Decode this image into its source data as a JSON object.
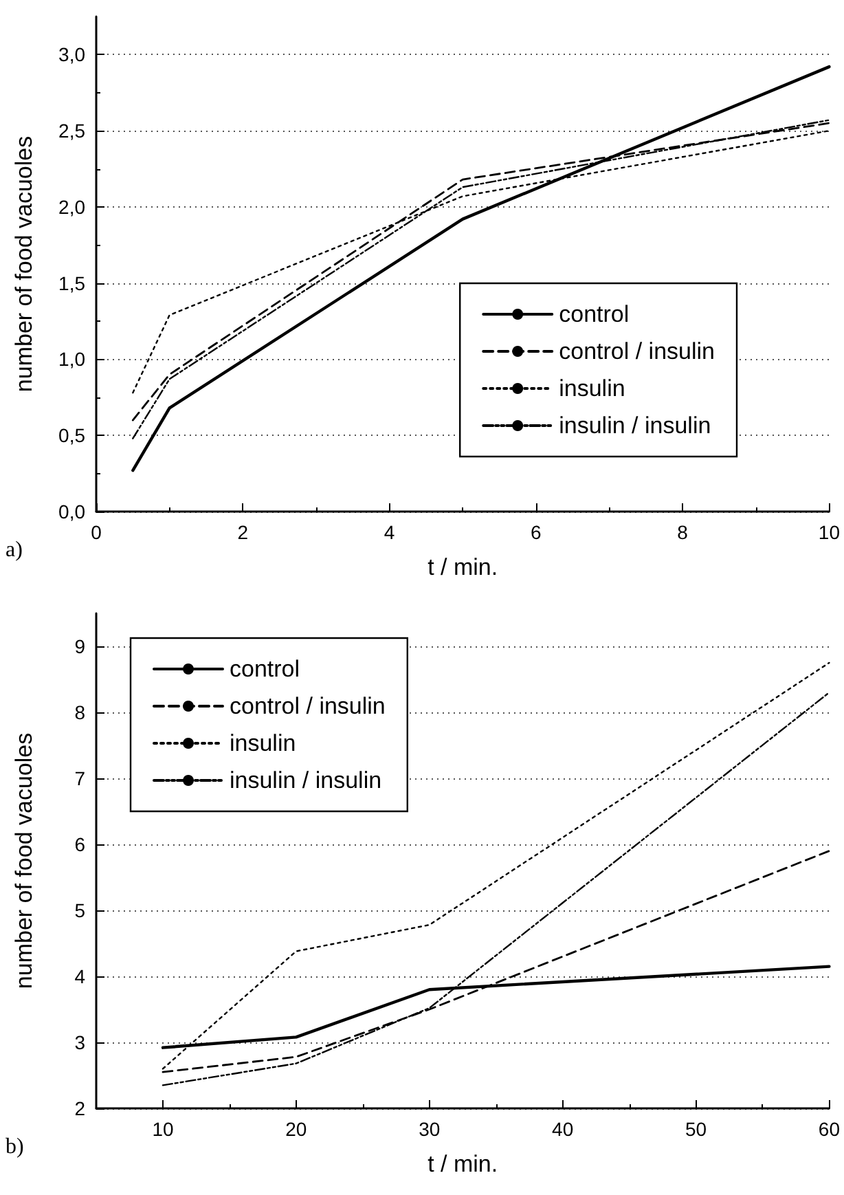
{
  "chart_data": [
    {
      "type": "line",
      "xlabel": "t / min.",
      "ylabel": "number of food vacuoles",
      "annotations": [
        "a)"
      ],
      "xlim": [
        0,
        10
      ],
      "xticks": [
        0,
        2,
        4,
        6,
        8,
        10
      ],
      "ylim": [
        0,
        3.25
      ],
      "yticks": [
        {
          "value": 0,
          "label": "0,0"
        },
        {
          "value": 0.5,
          "label": "0,5"
        },
        {
          "value": 1,
          "label": "1,0"
        },
        {
          "value": 1.5,
          "label": "1,5"
        },
        {
          "value": 2,
          "label": "2,0"
        },
        {
          "value": 2.5,
          "label": "2,5"
        },
        {
          "value": 3,
          "label": "3,0"
        }
      ],
      "grid": "y",
      "legend": "bottom right",
      "marker": "none",
      "x": [
        0.5,
        1,
        5,
        10
      ],
      "series": [
        {
          "name": "control",
          "color": "#000000",
          "line_style": "solid",
          "values": [
            0.27,
            0.68,
            1.92,
            2.92
          ]
        },
        {
          "name": "control / insulin",
          "color": "#000000",
          "line_style": "dashed",
          "values": [
            0.6,
            0.9,
            2.18,
            2.55
          ]
        },
        {
          "name": "insulin",
          "color": "#000000",
          "line_style": "dotted",
          "values": [
            0.78,
            1.29,
            2.07,
            2.5
          ]
        },
        {
          "name": "insulin / insulin",
          "color": "#000000",
          "line_style": "dashdot",
          "values": [
            0.48,
            0.87,
            2.13,
            2.57
          ]
        }
      ]
    },
    {
      "type": "line",
      "xlabel": "t / min.",
      "ylabel": "number of food vacuoles",
      "annotations": [
        "b)"
      ],
      "xlim": [
        5,
        60
      ],
      "xticks": [
        10,
        20,
        30,
        40,
        50,
        60
      ],
      "ylim": [
        2,
        9.5
      ],
      "yticks": [
        2,
        3,
        4,
        5,
        6,
        7,
        8,
        9
      ],
      "grid": "y",
      "legend": "top left",
      "marker": "none",
      "x": [
        10,
        20,
        30,
        60
      ],
      "series": [
        {
          "name": "control",
          "color": "#000000",
          "line_style": "solid",
          "values": [
            2.92,
            3.08,
            3.8,
            4.15
          ]
        },
        {
          "name": "control / insulin",
          "color": "#000000",
          "line_style": "dashed",
          "values": [
            2.55,
            2.78,
            3.5,
            5.9
          ]
        },
        {
          "name": "insulin",
          "color": "#000000",
          "line_style": "dotted",
          "values": [
            2.6,
            4.38,
            4.78,
            8.75
          ]
        },
        {
          "name": "insulin / insulin",
          "color": "#000000",
          "line_style": "dashdot",
          "values": [
            2.35,
            2.68,
            3.52,
            8.3
          ]
        }
      ]
    }
  ]
}
